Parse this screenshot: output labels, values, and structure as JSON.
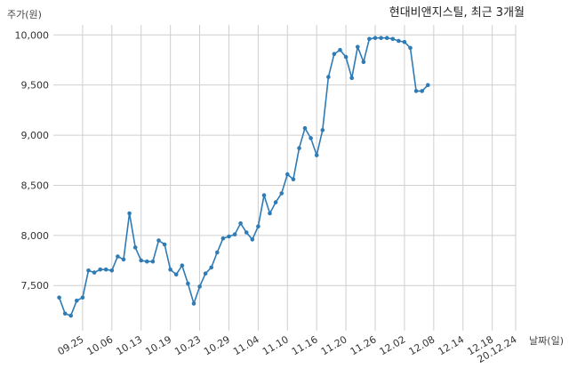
{
  "chart_data": {
    "type": "line",
    "title": "현대비앤지스틸, 최근 3개월",
    "ylabel": "주가(원)",
    "xlabel": "날짜(일)",
    "ylim": [
      7050,
      10100
    ],
    "yticks": [
      7500,
      8000,
      8500,
      9000,
      9500,
      10000
    ],
    "ytick_labels": [
      "7,500",
      "8,000",
      "8,500",
      "9,000",
      "9,500",
      "10,000"
    ],
    "xtick_labels": [
      "09.25",
      "10.06",
      "10.13",
      "10.19",
      "10.23",
      "10.29",
      "11.04",
      "11.10",
      "11.16",
      "11.20",
      "11.26",
      "12.02",
      "12.08",
      "12.14",
      "12.18",
      "20.12.24"
    ],
    "xtick_index": [
      5,
      10,
      15,
      20,
      25,
      30,
      35,
      40,
      45,
      50,
      55,
      60,
      65,
      70,
      75,
      79
    ],
    "grid": true,
    "color": "#2e7bb6",
    "series": [
      {
        "name": "",
        "values": [
          7380,
          7220,
          7200,
          7350,
          7380,
          7650,
          7630,
          7660,
          7660,
          7650,
          7790,
          7760,
          8220,
          7880,
          7750,
          7740,
          7740,
          7950,
          7910,
          7660,
          7610,
          7700,
          7520,
          7320,
          7490,
          7620,
          7680,
          7830,
          7970,
          7990,
          8010,
          8120,
          8030,
          7960,
          8090,
          8400,
          8220,
          8330,
          8420,
          8610,
          8560,
          8870,
          9070,
          8970,
          8800,
          9050,
          9580,
          9810,
          9850,
          9780,
          9570,
          9880,
          9730,
          9960,
          9970,
          9970,
          9970,
          9960,
          9940,
          9930,
          9870,
          9440,
          9440,
          9500
        ]
      }
    ]
  }
}
